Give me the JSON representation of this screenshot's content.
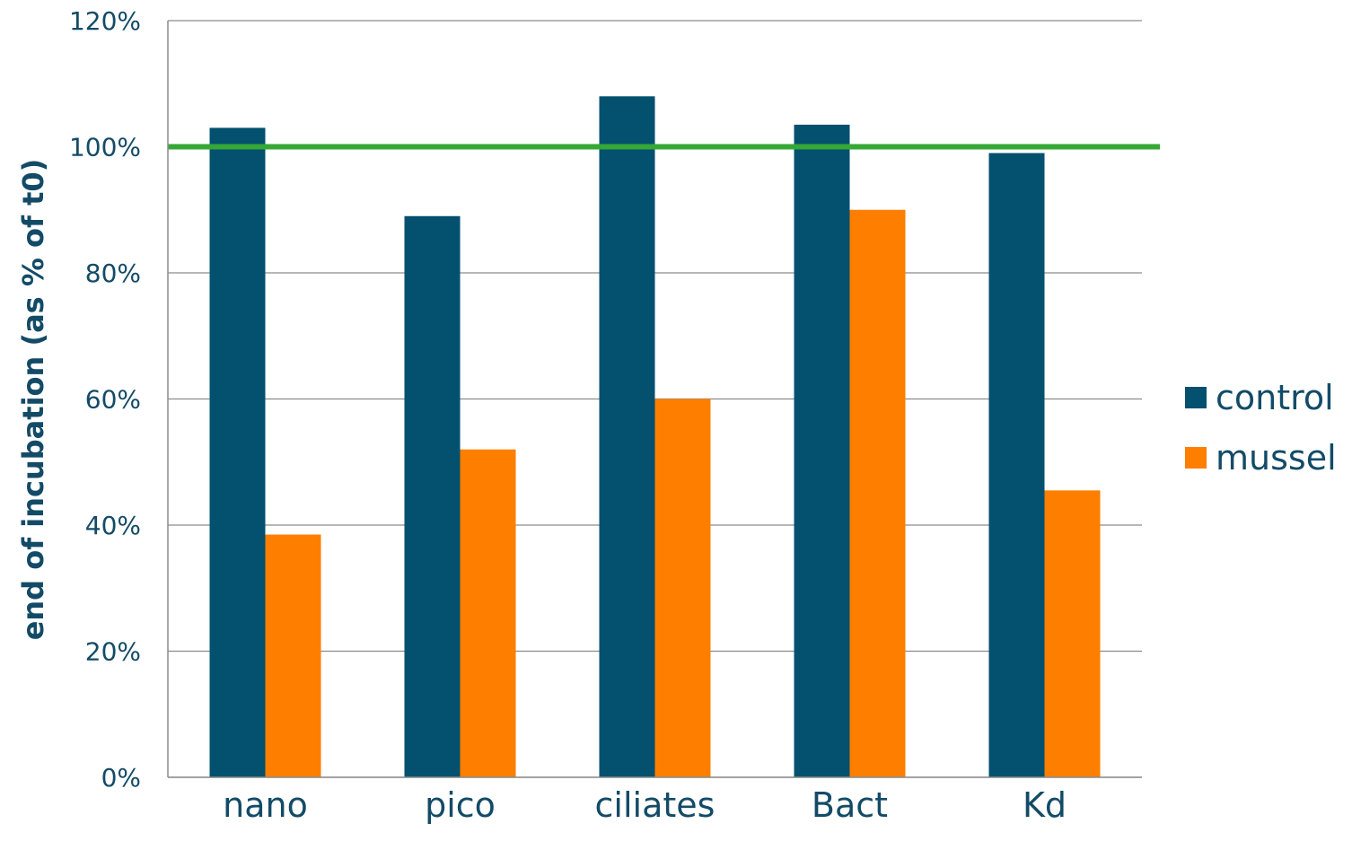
{
  "chart_data": {
    "type": "bar",
    "categories": [
      "nano",
      "pico",
      "ciliates",
      "Bact",
      "Kd"
    ],
    "series": [
      {
        "name": "control",
        "color": "#03506f",
        "values": [
          103,
          89,
          108,
          103.5,
          99
        ]
      },
      {
        "name": "mussel",
        "color": "#fe7f00",
        "values": [
          38.5,
          52,
          60,
          90,
          45.5
        ]
      }
    ],
    "reference_line": {
      "value": 100,
      "color": "#35a836"
    },
    "ylabel": "end of incubation (as % of t0)",
    "ylim": [
      0,
      120
    ],
    "ytick_labels": [
      "0%",
      "20%",
      "40%",
      "60%",
      "80%",
      "100%",
      "120%"
    ],
    "grid": true,
    "legend_placement": "right"
  }
}
